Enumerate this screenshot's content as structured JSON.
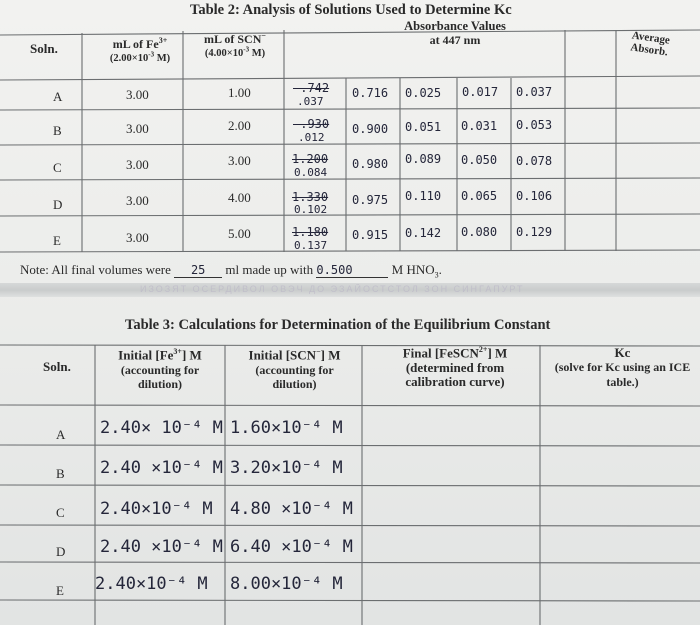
{
  "table2": {
    "title": "Table 2: Analysis of Solutions Used to Determine Kc",
    "headers": {
      "soln": "Soln.",
      "fe_ml": "mL of Fe",
      "fe_sup": "3+",
      "fe_conc": "(2.00×10",
      "fe_conc_sup": "-3",
      "fe_conc_end": " M)",
      "scn_ml": "mL of SCN",
      "scn_sup": "−",
      "scn_conc": "(4.00×10",
      "scn_conc_sup": "-3",
      "scn_conc_end": " M)",
      "absorbance": "Absorbance Values",
      "wavelength": "at 447 nm",
      "average": "Average Absorb."
    },
    "rows": [
      {
        "soln": "A",
        "fe": "3.00",
        "scn": "1.00",
        "a1_struck": "-.742",
        "a1": ".037",
        "a2": "0.716",
        "a3": "0.025",
        "a4": "0.017",
        "avg": "0.037"
      },
      {
        "soln": "B",
        "fe": "3.00",
        "scn": "2.00",
        "a1_struck": "-.930",
        "a1": ".012",
        "a2": "0.900",
        "a3": "0.051",
        "a4": "0.031",
        "avg": "0.053"
      },
      {
        "soln": "C",
        "fe": "3.00",
        "scn": "3.00",
        "a1_struck": "1.200",
        "a1": "0.084",
        "a2": "0.980",
        "a3": "0.089",
        "a4": "0.050",
        "avg": "0.078"
      },
      {
        "soln": "D",
        "fe": "3.00",
        "scn": "4.00",
        "a1_struck": "1.330",
        "a1": "0.102",
        "a2": "0.975",
        "a3": "0.110",
        "a4": "0.065",
        "avg": "0.106"
      },
      {
        "soln": "E",
        "fe": "3.00",
        "scn": "5.00",
        "a1_struck": "1.180",
        "a1": "0.137",
        "a2": "0.915",
        "a3": "0.142",
        "a4": "0.080",
        "avg": "0.129"
      }
    ],
    "note_prefix": "Note: All final volumes were",
    "note_volume": "25",
    "note_mid": "ml made up with",
    "note_conc": "0.500",
    "note_suffix": "M HNO",
    "note_sub": "3",
    "note_end": "."
  },
  "table3": {
    "title": "Table 3: Calculations for Determination of the Equilibrium Constant",
    "headers": {
      "soln": "Soln.",
      "fe_init": "Initial [Fe",
      "fe_sup": "3+",
      "fe_unit": "] M",
      "fe_note": "(accounting for dilution)",
      "scn_init": "Initial [SCN",
      "scn_sup": "−",
      "scn_unit": "] M",
      "scn_note": "(accounting for dilution)",
      "final": "Final [FeSCN",
      "final_sup": "2+",
      "final_unit": "] M",
      "final_note": "(determined from calibration curve)",
      "kc": "Kc",
      "kc_note": "(solve for Kc using an ICE table.)"
    },
    "rows": [
      {
        "soln": "A",
        "fe": "2.40× 10⁻⁴ M",
        "scn": "1.60×10⁻⁴ M"
      },
      {
        "soln": "B",
        "fe": "2.40 ×10⁻⁴ M",
        "scn": "3.20×10⁻⁴ M"
      },
      {
        "soln": "C",
        "fe": "2.40×10⁻⁴ M",
        "scn": "4.80 ×10⁻⁴ M"
      },
      {
        "soln": "D",
        "fe": "2.40 ×10⁻⁴ M",
        "scn": "6.40 ×10⁻⁴ M"
      },
      {
        "soln": "E",
        "fe": "2.40×10⁻⁴ M",
        "scn": "8.00×10⁻⁴ M"
      }
    ]
  },
  "ghost_text": "ИЗОЗЯТ ОСЕРДИВОЛ ОВЭЧ ДО ЭЗАЙОСТСТОЛ ЗОН СИНГАПУРТ"
}
